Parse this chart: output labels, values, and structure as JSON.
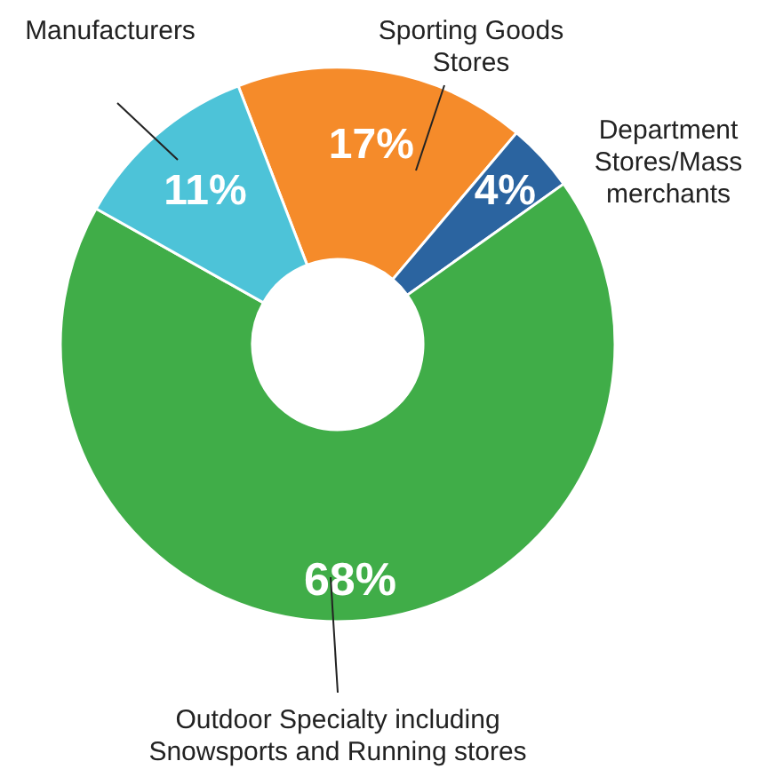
{
  "chart_data": {
    "type": "donut",
    "categories": [
      "Sporting Goods Stores",
      "Department Stores/Mass merchants",
      "Outdoor Specialty including Snowsports and Running stores",
      "Manufacturers"
    ],
    "values": [
      17,
      4,
      68,
      11
    ],
    "colors": [
      "#f58b2a",
      "#2b64a0",
      "#40ad48",
      "#4dc3d8"
    ],
    "value_labels": [
      "17%",
      "4%",
      "68%",
      "11%"
    ]
  }
}
